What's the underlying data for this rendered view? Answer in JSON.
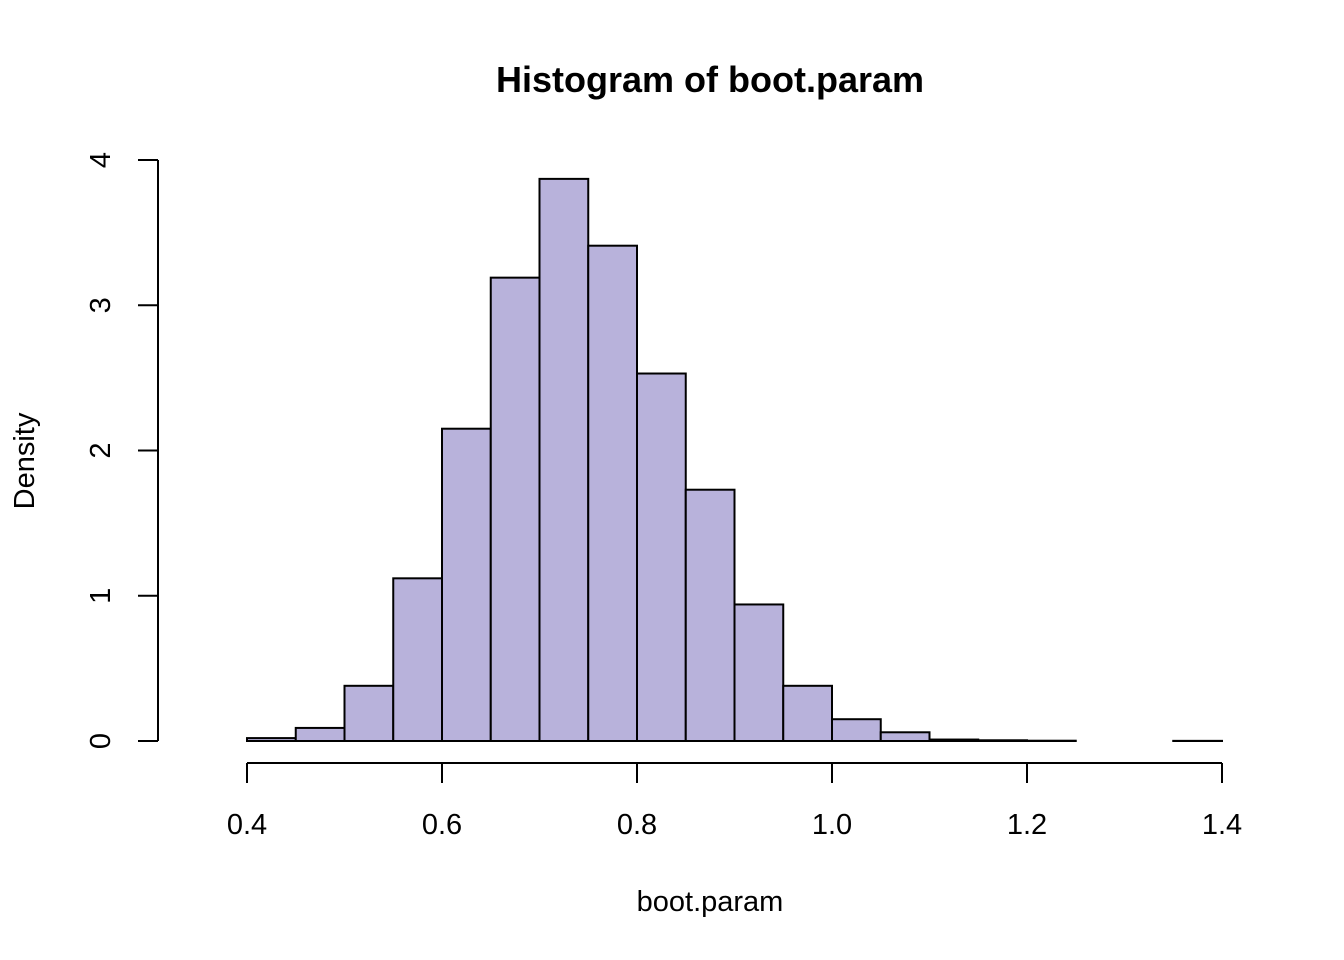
{
  "chart_data": {
    "type": "bar",
    "title": "Histogram of boot.param",
    "xlabel": "boot.param",
    "ylabel": "Density",
    "bar_color": "#b8b2db",
    "edge_color": "#000000",
    "xlim": [
      0.4,
      1.4
    ],
    "ylim": [
      0,
      4
    ],
    "x_ticks": [
      0.4,
      0.6,
      0.8,
      1.0,
      1.2,
      1.4
    ],
    "x_tick_labels": [
      "0.4",
      "0.6",
      "0.8",
      "1.0",
      "1.2",
      "1.4"
    ],
    "y_ticks": [
      0,
      1,
      2,
      3,
      4
    ],
    "y_tick_labels": [
      "0",
      "1",
      "2",
      "3",
      "4"
    ],
    "bin_width": 0.05,
    "bins": [
      {
        "start": 0.35,
        "end": 0.4,
        "density": 0.0
      },
      {
        "start": 0.4,
        "end": 0.45,
        "density": 0.02
      },
      {
        "start": 0.45,
        "end": 0.5,
        "density": 0.09
      },
      {
        "start": 0.5,
        "end": 0.55,
        "density": 0.38
      },
      {
        "start": 0.55,
        "end": 0.6,
        "density": 1.12
      },
      {
        "start": 0.6,
        "end": 0.65,
        "density": 2.15
      },
      {
        "start": 0.65,
        "end": 0.7,
        "density": 3.19
      },
      {
        "start": 0.7,
        "end": 0.75,
        "density": 3.87
      },
      {
        "start": 0.75,
        "end": 0.8,
        "density": 3.41
      },
      {
        "start": 0.8,
        "end": 0.85,
        "density": 2.53
      },
      {
        "start": 0.85,
        "end": 0.9,
        "density": 1.73
      },
      {
        "start": 0.9,
        "end": 0.95,
        "density": 0.94
      },
      {
        "start": 0.95,
        "end": 1.0,
        "density": 0.38
      },
      {
        "start": 1.0,
        "end": 1.05,
        "density": 0.15
      },
      {
        "start": 1.05,
        "end": 1.1,
        "density": 0.06
      },
      {
        "start": 1.1,
        "end": 1.15,
        "density": 0.01
      },
      {
        "start": 1.15,
        "end": 1.2,
        "density": 0.005
      },
      {
        "start": 1.2,
        "end": 1.25,
        "density": 0.002
      },
      {
        "start": 1.25,
        "end": 1.3,
        "density": 0.0
      },
      {
        "start": 1.3,
        "end": 1.35,
        "density": 0.0
      },
      {
        "start": 1.35,
        "end": 1.4,
        "density": 0.001
      }
    ]
  }
}
